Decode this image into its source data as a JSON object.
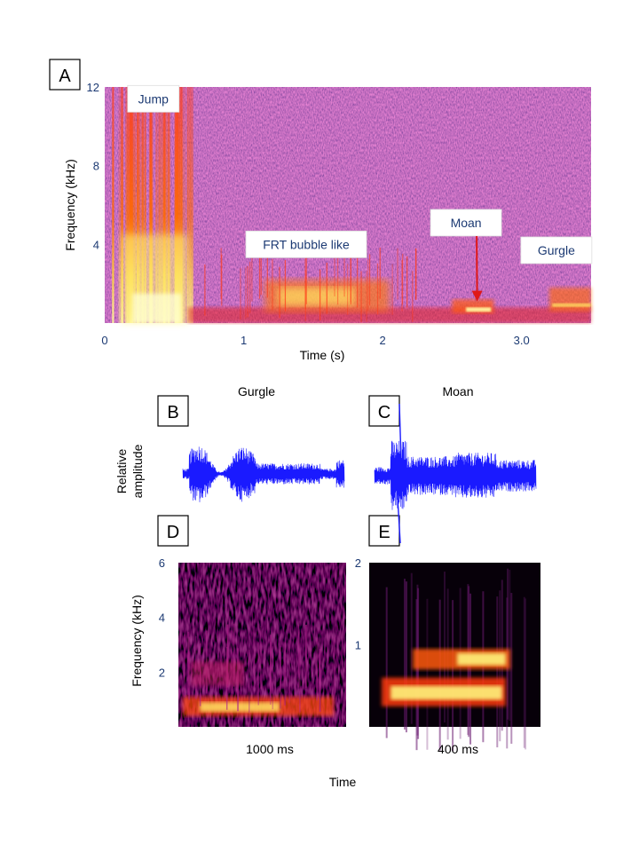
{
  "colors": {
    "spectrogram_low": "#3a1360",
    "spectrogram_high": "#fff27a",
    "waveform": "#1a1aff",
    "tick_text": "#1c3a73"
  },
  "chart_data": [
    {
      "panel": "A",
      "type": "heatmap",
      "xlabel": "Time (s)",
      "ylabel": "Frequency (kHz)",
      "xlim": [
        0,
        3.5
      ],
      "ylim": [
        0,
        12
      ],
      "x_ticks": [
        {
          "value": 0,
          "label": "0"
        },
        {
          "value": 1,
          "label": "1"
        },
        {
          "value": 2,
          "label": "2"
        },
        {
          "value": 3,
          "label": "3.0"
        }
      ],
      "y_ticks": [
        {
          "value": 4,
          "label": "4"
        },
        {
          "value": 8,
          "label": "8"
        },
        {
          "value": 12,
          "label": "12"
        }
      ],
      "annotations": [
        {
          "text": "Jump",
          "time": 0.35,
          "freq": 11.4
        },
        {
          "text": "FRT bubble like",
          "time": 1.45,
          "freq": 4.0
        },
        {
          "text": "Moan",
          "time": 2.6,
          "freq": 5.1,
          "arrow_to": {
            "time": 2.68,
            "freq": 1.1
          }
        },
        {
          "text": "Gurgle",
          "time": 3.25,
          "freq": 3.7
        }
      ],
      "events": [
        {
          "name": "Jump",
          "t_start": 0.05,
          "t_end": 0.62,
          "f_low": 0,
          "f_high": 12
        },
        {
          "name": "FRT bubble like",
          "t_start": 1.15,
          "t_end": 2.05,
          "f_low": 0.6,
          "f_high": 2.2
        },
        {
          "name": "Moan",
          "t_start": 2.5,
          "t_end": 2.8,
          "f_low": 0.5,
          "f_high": 1.2
        },
        {
          "name": "Gurgle",
          "t_start": 3.2,
          "t_end": 3.5,
          "f_low": 0.6,
          "f_high": 1.8
        }
      ]
    },
    {
      "panel": "B",
      "type": "line",
      "title": "Gurgle",
      "ylabel": "Relative amplitude",
      "note": "waveform of the gurgle call"
    },
    {
      "panel": "C",
      "type": "line",
      "title": "Moan",
      "note": "waveform of the moan call"
    },
    {
      "panel": "D",
      "type": "heatmap",
      "ylabel": "Frequency (kHz)",
      "ylim": [
        0,
        6
      ],
      "y_ticks": [
        {
          "value": 2,
          "label": "2"
        },
        {
          "value": 4,
          "label": "4"
        },
        {
          "value": 6,
          "label": "6"
        }
      ],
      "duration_label": "1000 ms"
    },
    {
      "panel": "E",
      "type": "heatmap",
      "ylim": [
        0,
        2
      ],
      "y_ticks": [
        {
          "value": 1,
          "label": "1"
        },
        {
          "value": 2,
          "label": "2"
        }
      ],
      "duration_label": "400 ms"
    }
  ],
  "shared_xlabel": "Time"
}
